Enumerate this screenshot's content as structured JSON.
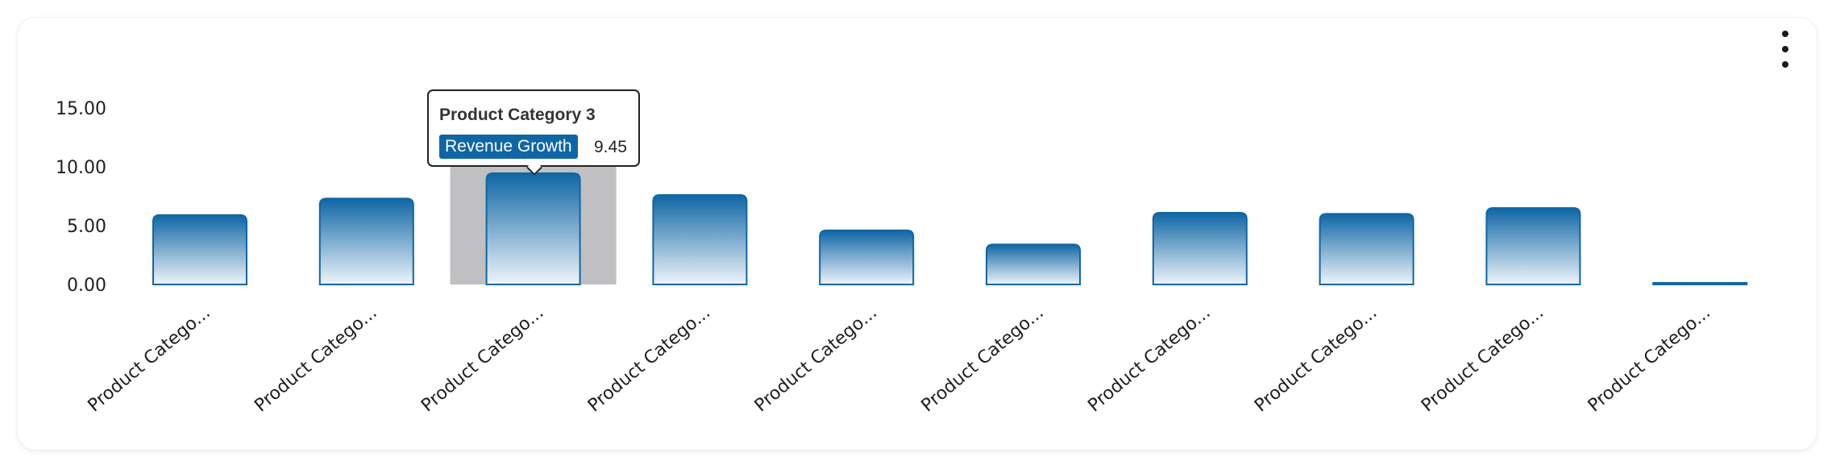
{
  "chart_data": {
    "type": "bar",
    "categories": [
      "Product Catego...",
      "Product Catego...",
      "Product Catego...",
      "Product Catego...",
      "Product Catego...",
      "Product Catego...",
      "Product Catego...",
      "Product Catego...",
      "Product Catego...",
      "Product Catego..."
    ],
    "series": [
      {
        "name": "Revenue Growth",
        "values": [
          5.9,
          7.3,
          9.45,
          7.6,
          4.6,
          3.4,
          6.1,
          6.0,
          6.5,
          0.1
        ]
      }
    ],
    "ylim": [
      0,
      15
    ],
    "yticks": [
      "0.00",
      "5.00",
      "10.00",
      "15.00"
    ],
    "ytick_values": [
      0,
      5,
      10,
      15
    ],
    "grid": false,
    "highlight_index": 2,
    "bar_color": "#0f66a5",
    "highlight_color": "#c0c0c2"
  },
  "tooltip": {
    "title": "Product Category 3",
    "series_label": "Revenue Growth",
    "value": "9.45"
  }
}
